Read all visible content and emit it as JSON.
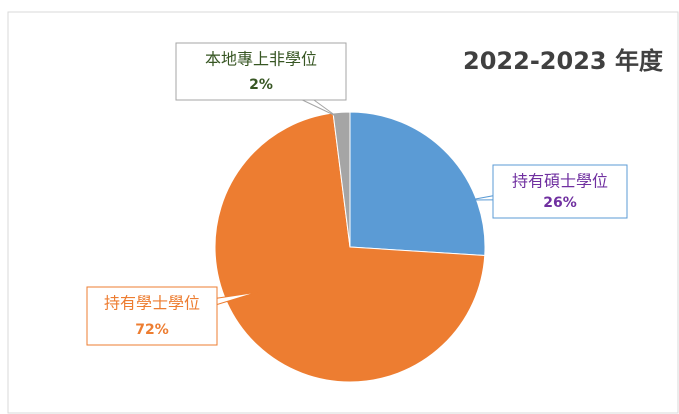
{
  "chart_data": {
    "type": "pie",
    "title": "2022-2023 年度",
    "categories": [
      "持有碩士學位",
      "持有學士學位",
      "本地專上非學位"
    ],
    "values": [
      26,
      72,
      2
    ],
    "value_labels": [
      "26%",
      "72%",
      "2%"
    ],
    "colors": [
      "#5b9bd5",
      "#ed7d31",
      "#a5a5a5"
    ],
    "label_colors": [
      "#7030a0",
      "#ed7d31",
      "#375623"
    ]
  }
}
